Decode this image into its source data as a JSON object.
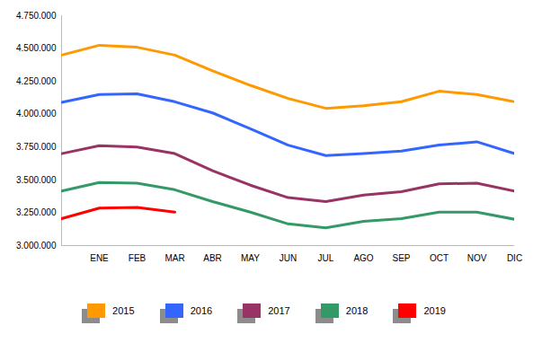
{
  "chart_data": {
    "type": "line",
    "categories": [
      null,
      "ENE",
      "FEB",
      "MAR",
      "ABR",
      "MAY",
      "JUN",
      "JUL",
      "AGO",
      "SEP",
      "OCT",
      "NOV",
      "DIC"
    ],
    "series": [
      {
        "name": "2015",
        "color": "#ff9900",
        "values": [
          4450000,
          4525000,
          4510000,
          4450000,
          4330000,
          4220000,
          4120000,
          4045000,
          4065000,
          4095000,
          4175000,
          4150000,
          4095000
        ]
      },
      {
        "name": "2016",
        "color": "#3366ff",
        "values": [
          4090000,
          4150000,
          4155000,
          4095000,
          4010000,
          3890000,
          3765000,
          3685000,
          3700000,
          3720000,
          3765000,
          3790000,
          3700000
        ]
      },
      {
        "name": "2017",
        "color": "#993366",
        "values": [
          3700000,
          3760000,
          3750000,
          3700000,
          3570000,
          3460000,
          3365000,
          3335000,
          3385000,
          3410000,
          3470000,
          3475000,
          3415000
        ]
      },
      {
        "name": "2018",
        "color": "#339966",
        "values": [
          3415000,
          3480000,
          3475000,
          3425000,
          3335000,
          3255000,
          3165000,
          3135000,
          3185000,
          3205000,
          3255000,
          3255000,
          3200000
        ]
      },
      {
        "name": "2019",
        "color": "#ff0000",
        "values": [
          3205000,
          3285000,
          3290000,
          3255000,
          null,
          null,
          null,
          null,
          null,
          null,
          null,
          null,
          null
        ]
      }
    ],
    "ylim": [
      3000000,
      4750000
    ],
    "yticks": [
      {
        "value": 3000000,
        "label": "3.000.000"
      },
      {
        "value": 3250000,
        "label": "3.250.000"
      },
      {
        "value": 3500000,
        "label": "3.500.000"
      },
      {
        "value": 3750000,
        "label": "3.750.000"
      },
      {
        "value": 4000000,
        "label": "4.000.000"
      },
      {
        "value": 4250000,
        "label": "4.250.000"
      },
      {
        "value": 4500000,
        "label": "4.500.000"
      },
      {
        "value": 4750000,
        "label": "4.750.000"
      }
    ],
    "grid": false,
    "legend": "bottom"
  }
}
